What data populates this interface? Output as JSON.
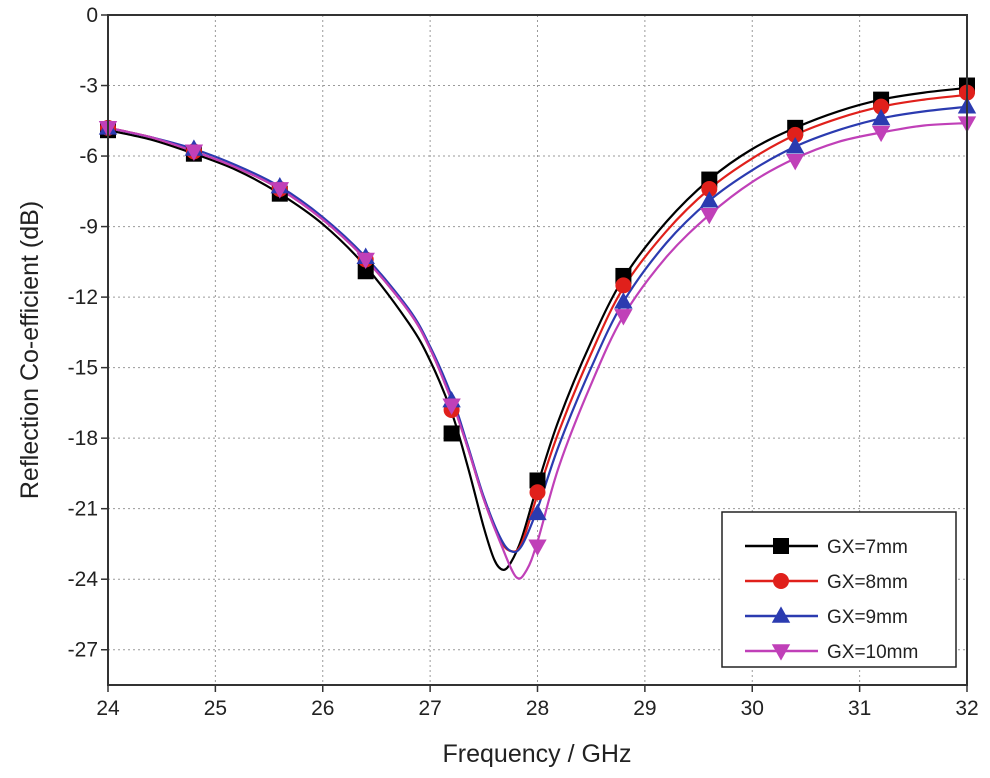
{
  "chart_data": {
    "type": "line",
    "title": "",
    "xlabel": "Frequency / GHz",
    "ylabel": "Reflection Co-efficient (dB)",
    "xlim": [
      24,
      32
    ],
    "ylim": [
      -28.5,
      0
    ],
    "xticks": [
      24,
      25,
      26,
      27,
      28,
      29,
      30,
      31,
      32
    ],
    "yticks": [
      0,
      -3,
      -6,
      -9,
      -12,
      -15,
      -18,
      -21,
      -24,
      -27
    ],
    "grid": true,
    "legend_position": "bottom-right",
    "marker_x": [
      24,
      24.8,
      25.6,
      26.4,
      27.2,
      28.0,
      28.8,
      29.6,
      30.4,
      31.2,
      32.0
    ],
    "series": [
      {
        "name": "GX=7mm",
        "color": "#000000",
        "marker": "square",
        "curve": [
          [
            24,
            -4.9
          ],
          [
            24.4,
            -5.3
          ],
          [
            24.8,
            -5.9
          ],
          [
            25.2,
            -6.6
          ],
          [
            25.6,
            -7.6
          ],
          [
            26.0,
            -8.9
          ],
          [
            26.4,
            -10.7
          ],
          [
            26.8,
            -13.1
          ],
          [
            27.0,
            -14.7
          ],
          [
            27.2,
            -16.9
          ],
          [
            27.35,
            -19.2
          ],
          [
            27.5,
            -21.8
          ],
          [
            27.6,
            -23.2
          ],
          [
            27.68,
            -23.6
          ],
          [
            27.75,
            -23.3
          ],
          [
            27.85,
            -22.3
          ],
          [
            28.0,
            -20.0
          ],
          [
            28.2,
            -17.2
          ],
          [
            28.5,
            -13.9
          ],
          [
            28.8,
            -11.2
          ],
          [
            29.2,
            -8.8
          ],
          [
            29.6,
            -7.0
          ],
          [
            30.0,
            -5.7
          ],
          [
            30.4,
            -4.8
          ],
          [
            30.8,
            -4.1
          ],
          [
            31.2,
            -3.6
          ],
          [
            31.6,
            -3.3
          ],
          [
            32.0,
            -3.1
          ]
        ],
        "markers": [
          -4.9,
          -5.9,
          -7.6,
          -10.9,
          -17.8,
          -19.8,
          -11.1,
          -7.0,
          -4.8,
          -3.6,
          -3.0
        ]
      },
      {
        "name": "GX=8mm",
        "color": "#e0201b",
        "marker": "circle",
        "curve": [
          [
            24,
            -4.8
          ],
          [
            24.4,
            -5.2
          ],
          [
            24.8,
            -5.8
          ],
          [
            25.2,
            -6.5
          ],
          [
            25.6,
            -7.4
          ],
          [
            26.0,
            -8.7
          ],
          [
            26.4,
            -10.4
          ],
          [
            26.8,
            -12.6
          ],
          [
            27.0,
            -14.2
          ],
          [
            27.2,
            -16.4
          ],
          [
            27.35,
            -18.4
          ],
          [
            27.5,
            -20.6
          ],
          [
            27.65,
            -22.3
          ],
          [
            27.75,
            -22.8
          ],
          [
            27.85,
            -22.5
          ],
          [
            28.0,
            -20.4
          ],
          [
            28.2,
            -17.7
          ],
          [
            28.5,
            -14.4
          ],
          [
            28.8,
            -11.6
          ],
          [
            29.2,
            -9.2
          ],
          [
            29.6,
            -7.4
          ],
          [
            30.0,
            -6.1
          ],
          [
            30.4,
            -5.1
          ],
          [
            30.8,
            -4.4
          ],
          [
            31.2,
            -3.9
          ],
          [
            31.6,
            -3.6
          ],
          [
            32.0,
            -3.4
          ]
        ],
        "markers": [
          -4.8,
          -5.8,
          -7.4,
          -10.4,
          -16.8,
          -20.3,
          -11.5,
          -7.4,
          -5.1,
          -3.9,
          -3.3
        ]
      },
      {
        "name": "GX=9mm",
        "color": "#2b3bb0",
        "marker": "triangle-up",
        "curve": [
          [
            24,
            -4.8
          ],
          [
            24.4,
            -5.2
          ],
          [
            24.8,
            -5.7
          ],
          [
            25.2,
            -6.4
          ],
          [
            25.6,
            -7.3
          ],
          [
            26.0,
            -8.6
          ],
          [
            26.4,
            -10.3
          ],
          [
            26.8,
            -12.5
          ],
          [
            27.0,
            -14.1
          ],
          [
            27.2,
            -16.2
          ],
          [
            27.35,
            -18.3
          ],
          [
            27.5,
            -20.5
          ],
          [
            27.65,
            -22.2
          ],
          [
            27.75,
            -22.8
          ],
          [
            27.85,
            -22.6
          ],
          [
            28.0,
            -21.0
          ],
          [
            28.2,
            -18.3
          ],
          [
            28.5,
            -15.0
          ],
          [
            28.8,
            -12.2
          ],
          [
            29.2,
            -9.7
          ],
          [
            29.6,
            -7.9
          ],
          [
            30.0,
            -6.6
          ],
          [
            30.4,
            -5.6
          ],
          [
            30.8,
            -4.9
          ],
          [
            31.2,
            -4.4
          ],
          [
            31.6,
            -4.1
          ],
          [
            32.0,
            -3.9
          ]
        ],
        "markers": [
          -4.8,
          -5.7,
          -7.3,
          -10.3,
          -16.4,
          -21.2,
          -12.2,
          -7.9,
          -5.6,
          -4.4,
          -3.9
        ]
      },
      {
        "name": "GX=10mm",
        "color": "#c040b8",
        "marker": "triangle-down",
        "curve": [
          [
            24,
            -4.8
          ],
          [
            24.4,
            -5.2
          ],
          [
            24.8,
            -5.8
          ],
          [
            25.2,
            -6.5
          ],
          [
            25.6,
            -7.4
          ],
          [
            26.0,
            -8.7
          ],
          [
            26.4,
            -10.4
          ],
          [
            26.8,
            -12.6
          ],
          [
            27.0,
            -14.2
          ],
          [
            27.2,
            -16.4
          ],
          [
            27.35,
            -18.4
          ],
          [
            27.5,
            -20.6
          ],
          [
            27.65,
            -22.4
          ],
          [
            27.8,
            -23.9
          ],
          [
            27.9,
            -23.6
          ],
          [
            28.0,
            -22.4
          ],
          [
            28.2,
            -19.2
          ],
          [
            28.5,
            -15.7
          ],
          [
            28.8,
            -12.8
          ],
          [
            29.2,
            -10.3
          ],
          [
            29.6,
            -8.5
          ],
          [
            30.0,
            -7.1
          ],
          [
            30.4,
            -6.1
          ],
          [
            30.8,
            -5.4
          ],
          [
            31.2,
            -5.0
          ],
          [
            31.6,
            -4.7
          ],
          [
            32.0,
            -4.6
          ]
        ],
        "markers": [
          -4.8,
          -5.8,
          -7.4,
          -10.4,
          -16.6,
          -22.6,
          -12.8,
          -8.5,
          -6.2,
          -5.0,
          -4.6
        ]
      }
    ]
  }
}
